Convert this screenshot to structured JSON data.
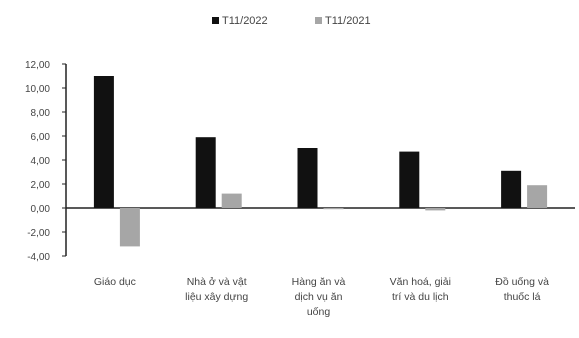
{
  "chart_data": {
    "type": "bar",
    "categories": [
      [
        "Giáo dục"
      ],
      [
        "Nhà ở và vật",
        "liệu xây dựng"
      ],
      [
        "Hàng ăn và",
        "dịch vụ ăn",
        "uống"
      ],
      [
        "Văn hoá, giải",
        "trí và du lịch"
      ],
      [
        "Đồ uống và",
        "thuốc lá"
      ]
    ],
    "series": [
      {
        "name": "T11/2022",
        "color": "#111111",
        "values": [
          11.0,
          5.9,
          5.0,
          4.7,
          3.1
        ]
      },
      {
        "name": "T11/2021",
        "color": "#a6a6a6",
        "values": [
          -3.2,
          1.2,
          -0.1,
          -0.2,
          1.9
        ]
      }
    ],
    "ylim": [
      -4,
      12
    ],
    "yticks": [
      "12,00",
      "10,00",
      "8,00",
      "6,00",
      "4,00",
      "2,00",
      "0,00",
      "-2,00",
      "-4,00"
    ],
    "legend_position": "top-center",
    "grid": false
  }
}
